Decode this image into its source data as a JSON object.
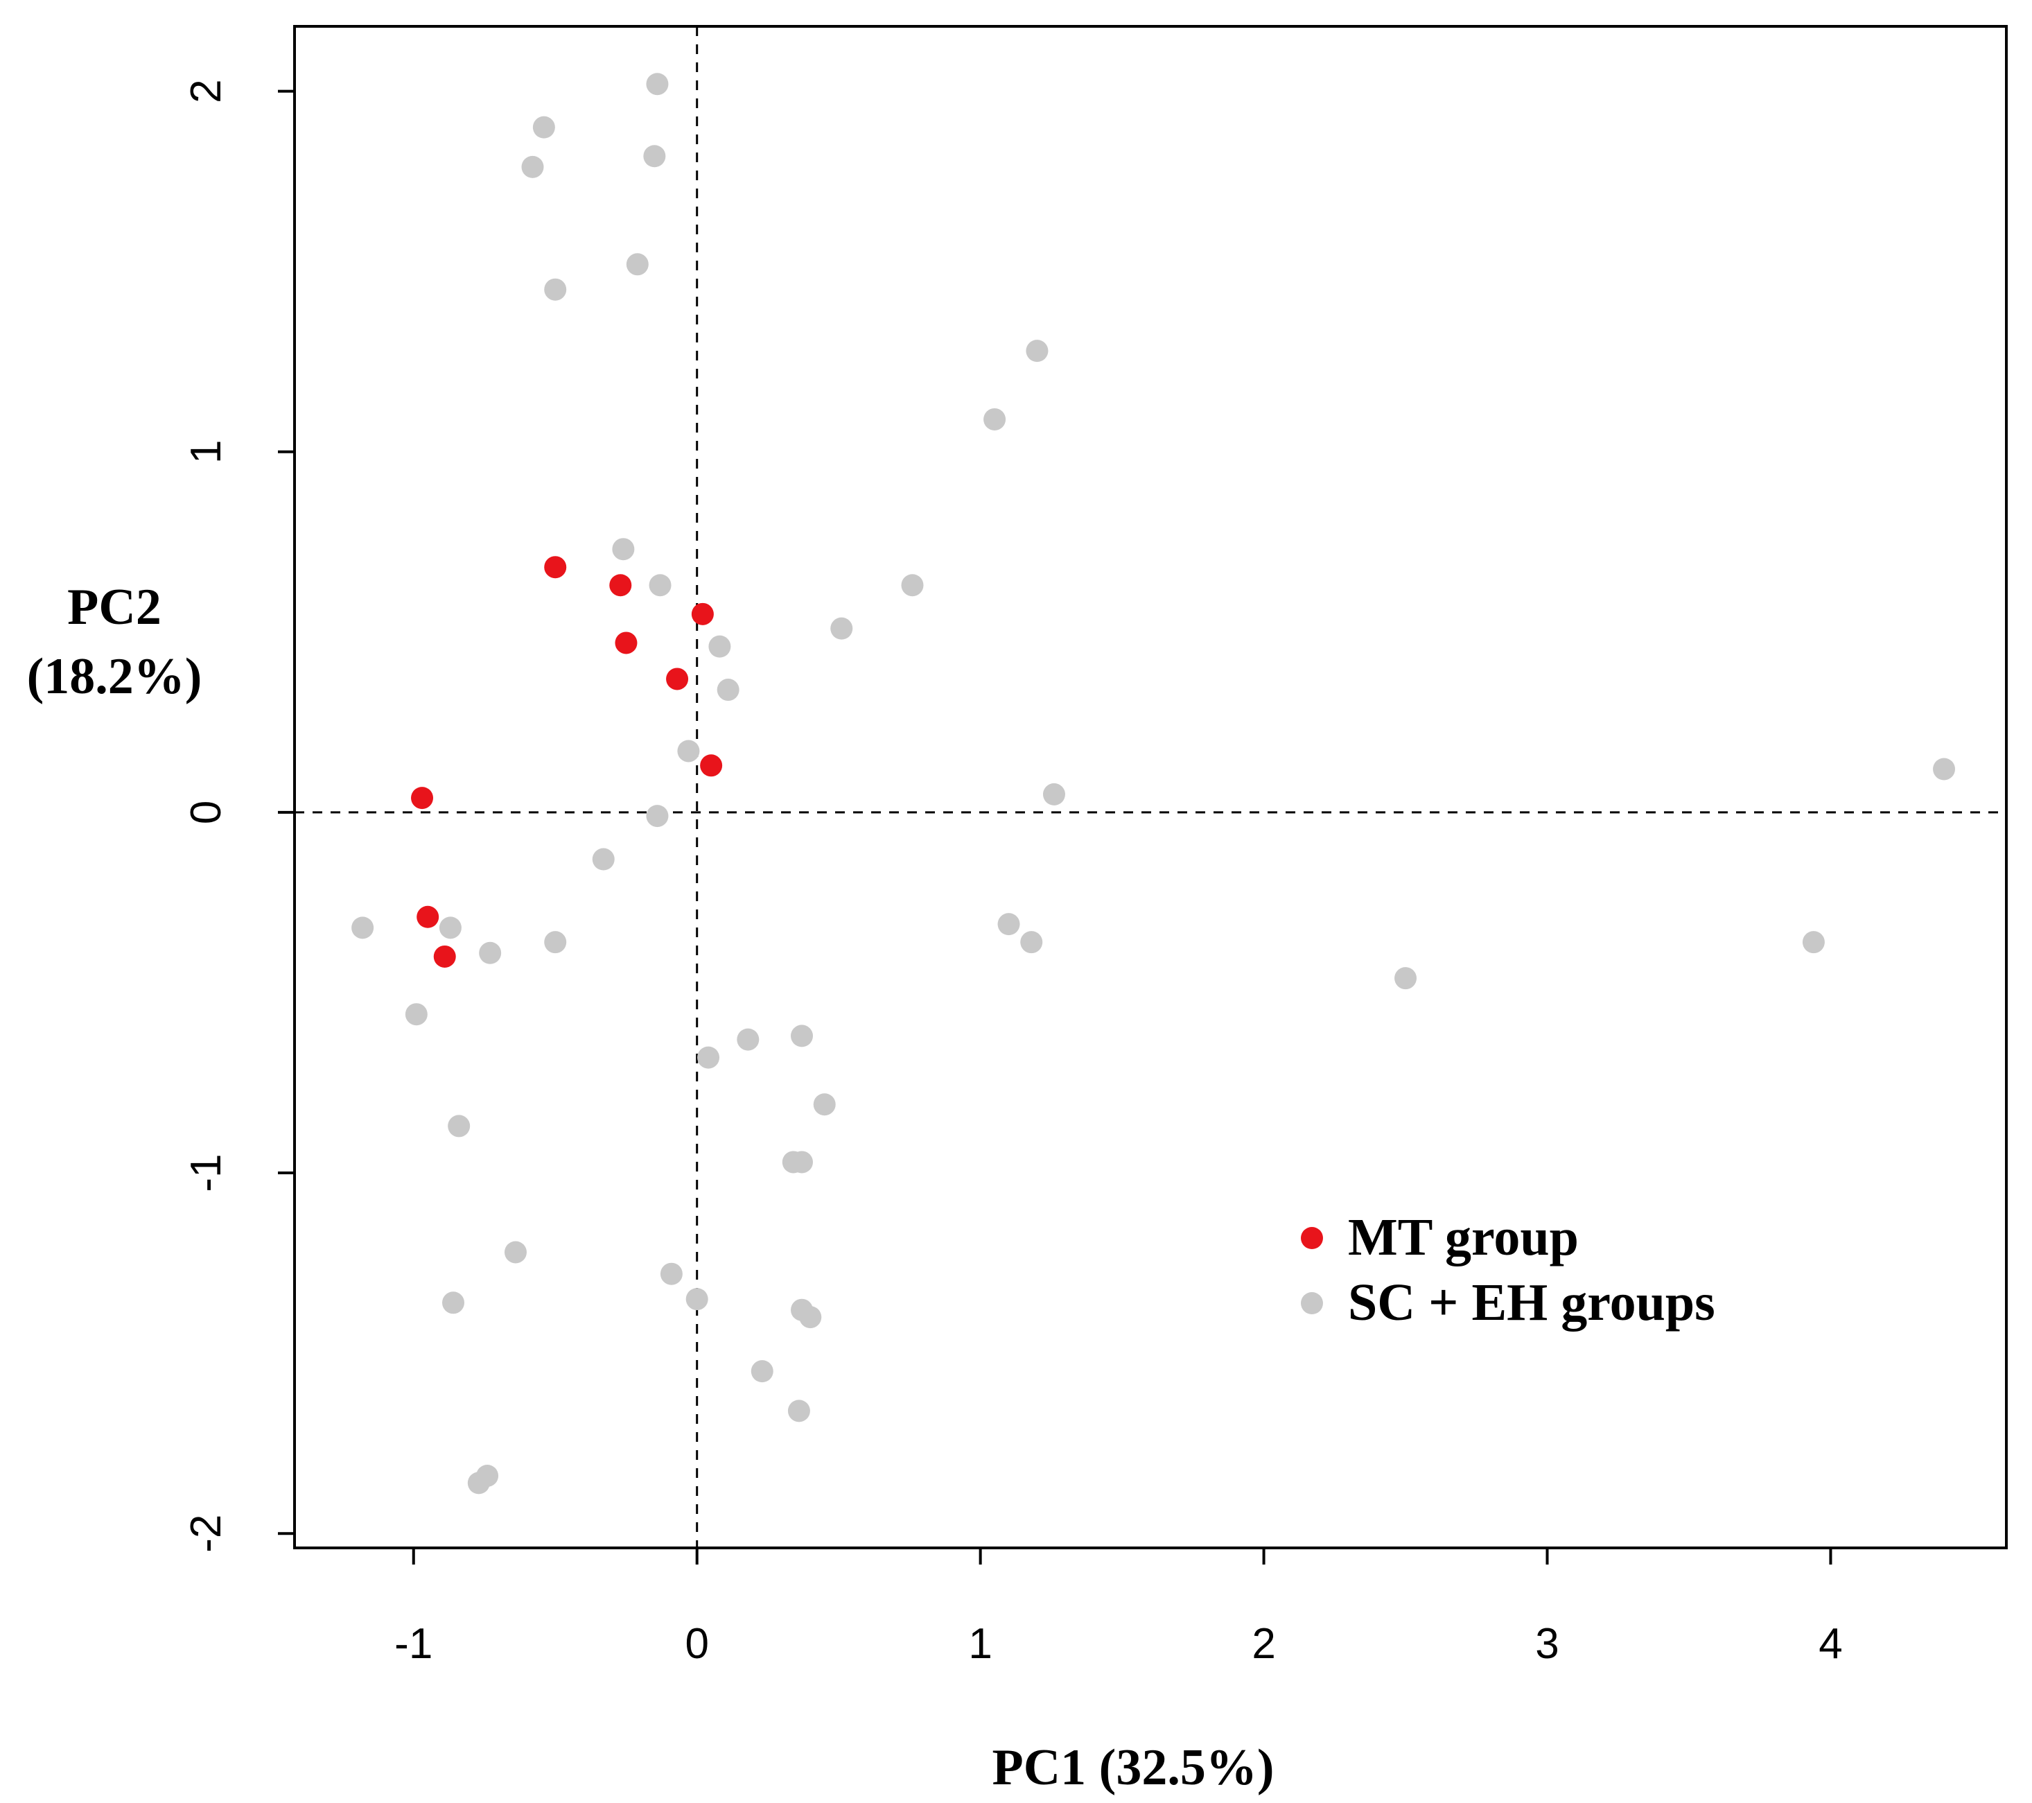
{
  "chart_data": {
    "type": "scatter",
    "xlabel": "PC1 (32.5%)",
    "ylabel_line1": "PC2",
    "ylabel_line2": "(18.2%)",
    "xlim": [
      -1.42,
      4.62
    ],
    "ylim": [
      -2.04,
      2.18
    ],
    "x_ticks": [
      -1,
      0,
      1,
      2,
      3,
      4
    ],
    "y_ticks": [
      -2,
      -1,
      0,
      1,
      2
    ],
    "reference_lines": {
      "x": 0,
      "y": 0
    },
    "legend": {
      "position": "bottom-right"
    },
    "series": [
      {
        "name": "MT group",
        "color": "#e8141b",
        "points": [
          [
            -0.5,
            0.68
          ],
          [
            -0.27,
            0.63
          ],
          [
            -0.25,
            0.47
          ],
          [
            0.02,
            0.55
          ],
          [
            -0.07,
            0.37
          ],
          [
            0.05,
            0.13
          ],
          [
            -0.97,
            0.04
          ],
          [
            -0.95,
            -0.29
          ],
          [
            -0.89,
            -0.4
          ]
        ]
      },
      {
        "name": "SC + EH groups",
        "color": "#c8c8c8",
        "points": [
          [
            -0.14,
            2.02
          ],
          [
            -0.54,
            1.9
          ],
          [
            -0.58,
            1.79
          ],
          [
            -0.15,
            1.82
          ],
          [
            -0.21,
            1.52
          ],
          [
            -0.5,
            1.45
          ],
          [
            1.2,
            1.28
          ],
          [
            1.05,
            1.09
          ],
          [
            -0.26,
            0.73
          ],
          [
            -0.13,
            0.63
          ],
          [
            0.76,
            0.63
          ],
          [
            0.51,
            0.51
          ],
          [
            0.08,
            0.46
          ],
          [
            0.11,
            0.34
          ],
          [
            -0.03,
            0.17
          ],
          [
            4.4,
            0.12
          ],
          [
            1.26,
            0.05
          ],
          [
            -0.14,
            -0.01
          ],
          [
            -0.33,
            -0.13
          ],
          [
            -1.18,
            -0.32
          ],
          [
            -0.87,
            -0.32
          ],
          [
            -0.73,
            -0.39
          ],
          [
            -0.5,
            -0.36
          ],
          [
            1.1,
            -0.31
          ],
          [
            1.18,
            -0.36
          ],
          [
            3.94,
            -0.36
          ],
          [
            2.5,
            -0.46
          ],
          [
            -0.99,
            -0.56
          ],
          [
            0.18,
            -0.63
          ],
          [
            0.37,
            -0.62
          ],
          [
            0.04,
            -0.68
          ],
          [
            0.45,
            -0.81
          ],
          [
            -0.84,
            -0.87
          ],
          [
            0.34,
            -0.97
          ],
          [
            0.37,
            -0.97
          ],
          [
            -0.64,
            -1.22
          ],
          [
            -0.09,
            -1.28
          ],
          [
            -0.86,
            -1.36
          ],
          [
            0.0,
            -1.35
          ],
          [
            0.37,
            -1.38
          ],
          [
            0.4,
            -1.4
          ],
          [
            0.23,
            -1.55
          ],
          [
            0.36,
            -1.66
          ],
          [
            -0.74,
            -1.84
          ],
          [
            -0.77,
            -1.86
          ]
        ]
      }
    ]
  }
}
